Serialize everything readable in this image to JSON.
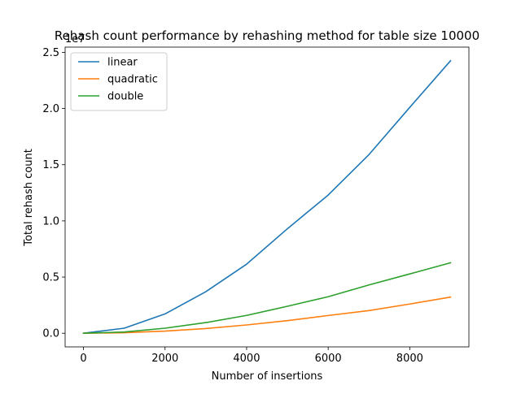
{
  "chart_data": {
    "type": "line",
    "title": "Rehash count performance by rehashing method for table size 10000",
    "xlabel": "Number of insertions",
    "ylabel": "Total rehash count",
    "y_offset_label": "1e7",
    "x": [
      0,
      1000,
      2000,
      3000,
      4000,
      5000,
      6000,
      7000,
      8000,
      9000
    ],
    "series": [
      {
        "name": "linear",
        "color": "#1f77b4",
        "values": [
          0,
          450000,
          1720000,
          3700000,
          6150000,
          9300000,
          12300000,
          15900000,
          20100000,
          24250000
        ]
      },
      {
        "name": "quadratic",
        "color": "#ff7f0e",
        "values": [
          0,
          50000,
          190000,
          420000,
          740000,
          1120000,
          1580000,
          2020000,
          2600000,
          3220000
        ]
      },
      {
        "name": "double",
        "color": "#2ca02c",
        "values": [
          0,
          110000,
          450000,
          950000,
          1590000,
          2400000,
          3250000,
          4300000,
          5280000,
          6270000
        ]
      }
    ],
    "xlim": [
      -450,
      9450
    ],
    "ylim": [
      -1212500,
      25462500
    ],
    "x_ticks": [
      0,
      2000,
      4000,
      6000,
      8000
    ],
    "x_tick_labels": [
      "0",
      "2000",
      "4000",
      "6000",
      "8000"
    ],
    "y_ticks": [
      0,
      5000000,
      10000000,
      15000000,
      20000000,
      25000000
    ],
    "y_tick_labels": [
      "0.0",
      "0.5",
      "1.0",
      "1.5",
      "2.0",
      "2.5"
    ],
    "grid": false,
    "legend_position": "upper-left"
  }
}
